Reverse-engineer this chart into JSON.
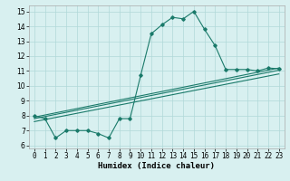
{
  "xlabel": "Humidex (Indice chaleur)",
  "ylabel": "",
  "xlim": [
    -0.5,
    23.5
  ],
  "ylim": [
    5.8,
    15.4
  ],
  "yticks": [
    6,
    7,
    8,
    9,
    10,
    11,
    12,
    13,
    14,
    15
  ],
  "xticks": [
    0,
    1,
    2,
    3,
    4,
    5,
    6,
    7,
    8,
    9,
    10,
    11,
    12,
    13,
    14,
    15,
    16,
    17,
    18,
    19,
    20,
    21,
    22,
    23
  ],
  "main_x": [
    0,
    1,
    2,
    3,
    4,
    5,
    6,
    7,
    8,
    9,
    10,
    11,
    12,
    13,
    14,
    15,
    16,
    17,
    18,
    19,
    20,
    21,
    22,
    23
  ],
  "main_y": [
    8.0,
    7.8,
    6.5,
    7.0,
    7.0,
    7.0,
    6.8,
    6.5,
    7.8,
    7.8,
    10.7,
    13.5,
    14.1,
    14.6,
    14.5,
    15.0,
    13.8,
    12.7,
    11.1,
    11.1,
    11.1,
    11.0,
    11.2,
    11.15
  ],
  "line1_x": [
    0,
    23
  ],
  "line1_y": [
    7.9,
    11.2
  ],
  "line2_x": [
    0,
    23
  ],
  "line2_y": [
    7.8,
    11.05
  ],
  "line3_x": [
    0,
    23
  ],
  "line3_y": [
    7.6,
    10.8
  ],
  "line_color": "#1a7a6a",
  "bg_color": "#d8f0f0",
  "grid_color": "#b0d8d8",
  "tick_fontsize": 5.5,
  "xlabel_fontsize": 6.5
}
